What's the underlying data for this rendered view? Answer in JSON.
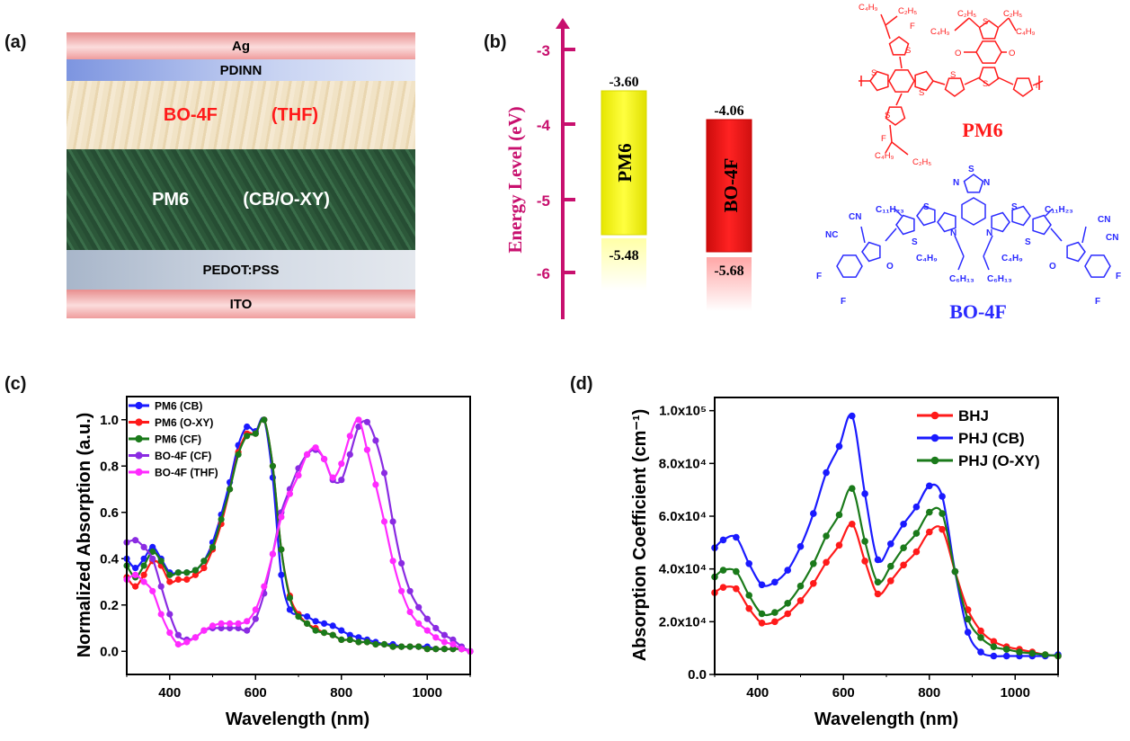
{
  "panel_labels": {
    "a": "(a)",
    "b": "(b)",
    "c": "(c)",
    "d": "(d)"
  },
  "device": {
    "layers": [
      {
        "name": "Ag",
        "color": "#ee9a9a"
      },
      {
        "name": "PDINN",
        "color": "#8fa4e4"
      },
      {
        "name": "BO-4F",
        "solvent": "(THF)",
        "color": "#efe0c0",
        "text_color": "#ff1a1a"
      },
      {
        "name": "PM6",
        "solvent": "(CB/O-XY)",
        "color": "#2e5a3a",
        "text_color": "#ffffff"
      },
      {
        "name": "PEDOT:PSS",
        "color": "#b8c2d2"
      },
      {
        "name": "ITO",
        "color": "#ee9a9a"
      }
    ]
  },
  "energy_diagram": {
    "axis_label": "Energy Level (eV)",
    "axis_color": "#c8106e",
    "ticks": [
      "-3",
      "-4",
      "-5",
      "-6"
    ],
    "tick_values": [
      -3,
      -4,
      -5,
      -6
    ],
    "materials": [
      {
        "name": "PM6",
        "lumo": -3.6,
        "homo": -5.48,
        "lumo_label": "-3.60",
        "homo_label": "-5.48",
        "color": "#f5f500"
      },
      {
        "name": "BO-4F",
        "lumo": -4.06,
        "homo": -5.68,
        "lumo_label": "-4.06",
        "homo_label": "-5.68",
        "color": "#ee1111"
      }
    ]
  },
  "chem": {
    "pm6_name": "PM6",
    "bo4f_name": "BO-4F",
    "pm6_color": "#ff1a1a",
    "bo4f_color": "#2a2aff",
    "pm6_labels": [
      "C₄H₉",
      "C₂H₅",
      "F",
      "S",
      "C₂H₅",
      "C₂H₅",
      "C₄H₉",
      "C₄H₉",
      "O",
      "O",
      "S",
      "S",
      "S",
      "S",
      "S",
      "F",
      "S",
      "C₄H₉",
      "C₂H₅",
      "n"
    ],
    "bo4f_labels": [
      "S",
      "N",
      "N",
      "C₁₁H₂₃",
      "C₁₁H₂₃",
      "S",
      "S",
      "S",
      "S",
      "N",
      "N",
      "CN",
      "NC",
      "CN",
      "CN",
      "O",
      "O",
      "C₄H₉",
      "C₄H₉",
      "C₆H₁₃",
      "C₆H₁₃",
      "F",
      "F",
      "F",
      "F"
    ]
  },
  "chart_data": [
    {
      "type": "line",
      "xlabel": "Wavelength (nm)",
      "ylabel": "Normalized Absorption (a.u.)",
      "xlim": [
        300,
        1100
      ],
      "ylim": [
        -0.1,
        1.1
      ],
      "xticks": [
        400,
        600,
        800,
        1000
      ],
      "xtick_labels": [
        "400",
        "600",
        "800",
        "1000"
      ],
      "yticks": [
        0.0,
        0.2,
        0.4,
        0.6,
        0.8,
        1.0
      ],
      "ytick_labels": [
        "0.0",
        "0.2",
        "0.4",
        "0.6",
        "0.8",
        "1.0"
      ],
      "legend_position": "top-left",
      "x": [
        300,
        320,
        340,
        360,
        380,
        400,
        420,
        440,
        460,
        480,
        500,
        520,
        540,
        560,
        580,
        600,
        620,
        640,
        660,
        680,
        700,
        720,
        740,
        760,
        780,
        800,
        820,
        840,
        860,
        880,
        900,
        920,
        940,
        960,
        980,
        1000,
        1020,
        1040,
        1060,
        1080,
        1100
      ],
      "series": [
        {
          "name": "PM6 (CB)",
          "color": "#1a1aff",
          "values": [
            0.4,
            0.36,
            0.4,
            0.45,
            0.4,
            0.34,
            0.34,
            0.34,
            0.35,
            0.39,
            0.47,
            0.59,
            0.73,
            0.89,
            0.97,
            0.95,
            1.0,
            0.75,
            0.33,
            0.18,
            0.16,
            0.15,
            0.13,
            0.12,
            0.11,
            0.09,
            0.07,
            0.06,
            0.05,
            0.04,
            0.03,
            0.03,
            0.02,
            0.02,
            0.02,
            0.02,
            0.01,
            0.01,
            0.01,
            0.01,
            0.0
          ]
        },
        {
          "name": "PM6 (O-XY)",
          "color": "#ff1a1a",
          "values": [
            0.32,
            0.28,
            0.33,
            0.39,
            0.37,
            0.3,
            0.31,
            0.31,
            0.33,
            0.36,
            0.44,
            0.55,
            0.7,
            0.86,
            0.94,
            0.94,
            1.0,
            0.8,
            0.44,
            0.24,
            0.16,
            0.12,
            0.1,
            0.08,
            0.07,
            0.05,
            0.05,
            0.04,
            0.04,
            0.03,
            0.03,
            0.02,
            0.02,
            0.02,
            0.02,
            0.01,
            0.01,
            0.01,
            0.01,
            0.01,
            0.0
          ]
        },
        {
          "name": "PM6 (CF)",
          "color": "#1a7a1a",
          "values": [
            0.37,
            0.32,
            0.37,
            0.43,
            0.39,
            0.33,
            0.34,
            0.34,
            0.35,
            0.39,
            0.45,
            0.57,
            0.7,
            0.85,
            0.93,
            0.94,
            1.0,
            0.8,
            0.44,
            0.23,
            0.15,
            0.12,
            0.09,
            0.08,
            0.07,
            0.05,
            0.05,
            0.04,
            0.04,
            0.03,
            0.03,
            0.02,
            0.02,
            0.02,
            0.02,
            0.01,
            0.01,
            0.01,
            0.01,
            0.01,
            0.0
          ]
        },
        {
          "name": "BO-4F (CF)",
          "color": "#8a2be2",
          "values": [
            0.47,
            0.48,
            0.45,
            0.4,
            0.28,
            0.16,
            0.07,
            0.05,
            0.06,
            0.09,
            0.1,
            0.1,
            0.1,
            0.1,
            0.09,
            0.14,
            0.25,
            0.42,
            0.6,
            0.7,
            0.79,
            0.85,
            0.87,
            0.83,
            0.74,
            0.74,
            0.85,
            0.97,
            0.99,
            0.91,
            0.77,
            0.56,
            0.38,
            0.26,
            0.19,
            0.14,
            0.1,
            0.07,
            0.05,
            0.02,
            0.0
          ]
        },
        {
          "name": "BO-4F (THF)",
          "color": "#ff2bff",
          "values": [
            0.31,
            0.33,
            0.3,
            0.26,
            0.16,
            0.08,
            0.03,
            0.04,
            0.06,
            0.09,
            0.11,
            0.12,
            0.12,
            0.12,
            0.13,
            0.18,
            0.28,
            0.42,
            0.58,
            0.68,
            0.76,
            0.85,
            0.88,
            0.83,
            0.75,
            0.81,
            0.93,
            1.0,
            0.87,
            0.72,
            0.56,
            0.39,
            0.26,
            0.17,
            0.12,
            0.09,
            0.06,
            0.04,
            0.03,
            0.01,
            0.0
          ]
        }
      ]
    },
    {
      "type": "line",
      "xlabel": "Wavelength (nm)",
      "ylabel": "Absorption Coefficient (cm⁻¹)",
      "xlim": [
        300,
        1100
      ],
      "ylim": [
        0,
        105000
      ],
      "xticks": [
        400,
        600,
        800,
        1000
      ],
      "xtick_labels": [
        "400",
        "600",
        "800",
        "1000"
      ],
      "yticks": [
        0,
        20000,
        40000,
        60000,
        80000,
        100000
      ],
      "ytick_labels": [
        "0.0",
        "2.0x10⁴",
        "4.0x10⁴",
        "6.0x10⁴",
        "8.0x10⁴",
        "1.0x10⁵"
      ],
      "legend_position": "top-right",
      "x": [
        300,
        320,
        350,
        380,
        410,
        440,
        470,
        500,
        530,
        560,
        590,
        620,
        650,
        680,
        710,
        740,
        770,
        800,
        830,
        860,
        890,
        920,
        950,
        980,
        1010,
        1040,
        1070,
        1100
      ],
      "series": [
        {
          "name": "BHJ",
          "color": "#ff1a1a",
          "values": [
            31000,
            33000,
            32500,
            25000,
            19500,
            20000,
            23000,
            28000,
            34500,
            42500,
            49000,
            57000,
            43000,
            30500,
            35500,
            41500,
            46500,
            54000,
            55000,
            39000,
            24500,
            16500,
            12500,
            10500,
            9500,
            8500,
            7500,
            7000
          ]
        },
        {
          "name": "PHJ (CB)",
          "color": "#1a1aff",
          "values": [
            48000,
            51000,
            52000,
            42000,
            34000,
            35000,
            39500,
            48500,
            61000,
            76500,
            86500,
            98000,
            68500,
            43500,
            49500,
            57000,
            63500,
            71500,
            67500,
            39000,
            16000,
            8500,
            7000,
            7000,
            7000,
            7000,
            7000,
            7500
          ]
        },
        {
          "name": "PHJ (O-XY)",
          "color": "#1a7a1a",
          "values": [
            37000,
            39500,
            39000,
            30000,
            23000,
            23500,
            27000,
            33500,
            42000,
            52500,
            60500,
            70500,
            50500,
            35000,
            41000,
            48000,
            53500,
            61500,
            61000,
            39000,
            21000,
            14000,
            10500,
            9500,
            8500,
            8000,
            7500,
            7000
          ]
        }
      ]
    }
  ]
}
